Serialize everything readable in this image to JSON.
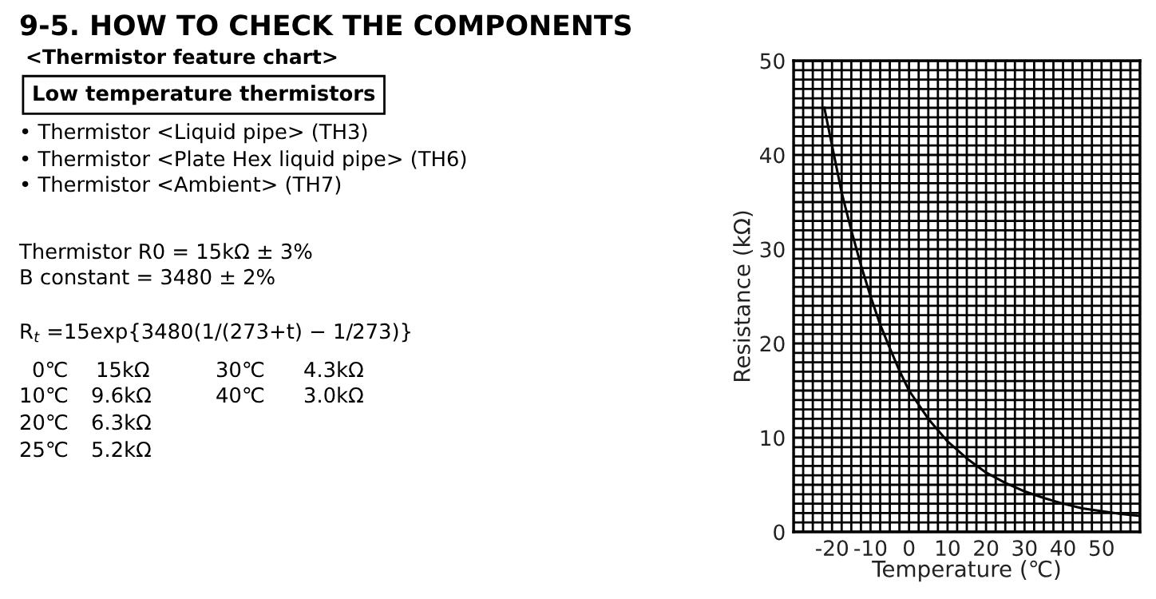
{
  "chart_data": {
    "type": "line",
    "title": "9-5. HOW TO CHECK THE COMPONENTS",
    "subtitle": "<Thermistor feature chart>",
    "xlabel": "Temperature (℃)",
    "ylabel": "Resistance (kΩ)",
    "x": [
      -22,
      -20,
      -17.5,
      -15,
      -12.5,
      -10,
      -7.5,
      -5,
      -2.5,
      0,
      5,
      10,
      15,
      20,
      25,
      30,
      35,
      40,
      45,
      50,
      55,
      60
    ],
    "series": [
      {
        "color": "#000000",
        "values": [
          45,
          41,
          36,
          32,
          28.3,
          25,
          22,
          19.5,
          17.1,
          15,
          12,
          9.6,
          7.8,
          6.3,
          5.2,
          4.3,
          3.6,
          3.0,
          2.5,
          2.2,
          1.9,
          1.7
        ]
      }
    ],
    "xlim": [
      -30,
      60
    ],
    "ylim": [
      0,
      50
    ],
    "xticks": [
      {
        "value": -30,
        "label": null
      },
      {
        "value": -27.5,
        "label": null
      },
      {
        "value": -25,
        "label": null
      },
      {
        "value": -22.5,
        "label": null
      },
      -20,
      {
        "value": -17.5,
        "label": null
      },
      {
        "value": -15,
        "label": null
      },
      {
        "value": -12.5,
        "label": null
      },
      -10,
      {
        "value": -7.5,
        "label": null
      },
      {
        "value": -5,
        "label": null
      },
      {
        "value": -2.5,
        "label": null
      },
      0,
      {
        "value": 2.5,
        "label": null
      },
      {
        "value": 5,
        "label": null
      },
      {
        "value": 7.5,
        "label": null
      },
      10,
      {
        "value": 12.5,
        "label": null
      },
      {
        "value": 15,
        "label": null
      },
      {
        "value": 17.5,
        "label": null
      },
      20,
      {
        "value": 22.5,
        "label": null
      },
      {
        "value": 25,
        "label": null
      },
      {
        "value": 27.5,
        "label": null
      },
      30,
      {
        "value": 32.5,
        "label": null
      },
      {
        "value": 35,
        "label": null
      },
      {
        "value": 37.5,
        "label": null
      },
      40,
      {
        "value": 42.5,
        "label": null
      },
      {
        "value": 45,
        "label": null
      },
      {
        "value": 47.5,
        "label": null
      },
      50,
      {
        "value": 52.5,
        "label": null
      },
      {
        "value": 55,
        "label": null
      },
      {
        "value": 57.5,
        "label": null
      },
      {
        "value": 60,
        "label": null
      }
    ],
    "yticks": [
      0,
      {
        "value": 1,
        "label": null
      },
      {
        "value": 2,
        "label": null
      },
      {
        "value": 3,
        "label": null
      },
      {
        "value": 4,
        "label": null
      },
      {
        "value": 5,
        "label": null
      },
      {
        "value": 6,
        "label": null
      },
      {
        "value": 7,
        "label": null
      },
      {
        "value": 8,
        "label": null
      },
      {
        "value": 9,
        "label": null
      },
      10,
      {
        "value": 11,
        "label": null
      },
      {
        "value": 12,
        "label": null
      },
      {
        "value": 13,
        "label": null
      },
      {
        "value": 14,
        "label": null
      },
      {
        "value": 15,
        "label": null
      },
      {
        "value": 16,
        "label": null
      },
      {
        "value": 17,
        "label": null
      },
      {
        "value": 18,
        "label": null
      },
      {
        "value": 19,
        "label": null
      },
      20,
      {
        "value": 21,
        "label": null
      },
      {
        "value": 22,
        "label": null
      },
      {
        "value": 23,
        "label": null
      },
      {
        "value": 24,
        "label": null
      },
      {
        "value": 25,
        "label": null
      },
      {
        "value": 26,
        "label": null
      },
      {
        "value": 27,
        "label": null
      },
      {
        "value": 28,
        "label": null
      },
      {
        "value": 29,
        "label": null
      },
      30,
      {
        "value": 31,
        "label": null
      },
      {
        "value": 32,
        "label": null
      },
      {
        "value": 33,
        "label": null
      },
      {
        "value": 34,
        "label": null
      },
      {
        "value": 35,
        "label": null
      },
      {
        "value": 36,
        "label": null
      },
      {
        "value": 37,
        "label": null
      },
      {
        "value": 38,
        "label": null
      },
      {
        "value": 39,
        "label": null
      },
      40,
      {
        "value": 41,
        "label": null
      },
      {
        "value": 42,
        "label": null
      },
      {
        "value": 43,
        "label": null
      },
      {
        "value": 44,
        "label": null
      },
      {
        "value": 45,
        "label": null
      },
      {
        "value": 46,
        "label": null
      },
      {
        "value": 47,
        "label": null
      },
      {
        "value": 48,
        "label": null
      },
      {
        "value": 49,
        "label": null
      },
      50
    ],
    "grid": true,
    "marker": "none",
    "line_style": "solid",
    "annotations": [
      "Low temperature thermistors",
      "• Thermistor <Liquid pipe> (TH3)",
      "• Thermistor <Plate Hex liquid pipe> (TH6)",
      "• Thermistor <Ambient> (TH7)",
      "Thermistor R0 = 15kΩ ± 3%",
      "B constant = 3480 ± 2%",
      "R$_{t}$ =15exp{3480(1/(273+t) − 1/273)}",
      "0℃",
      "15kΩ",
      "30℃",
      "4.3kΩ",
      "10℃",
      "9.6kΩ",
      "40℃",
      "3.0kΩ",
      "20℃",
      "6.3kΩ",
      "25℃",
      "5.2kΩ"
    ]
  }
}
